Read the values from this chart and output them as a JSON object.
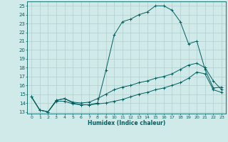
{
  "xlabel": "Humidex (Indice chaleur)",
  "xlim": [
    -0.5,
    23.5
  ],
  "ylim": [
    12.8,
    25.5
  ],
  "xticks": [
    0,
    1,
    2,
    3,
    4,
    5,
    6,
    7,
    8,
    9,
    10,
    11,
    12,
    13,
    14,
    15,
    16,
    17,
    18,
    19,
    20,
    21,
    22,
    23
  ],
  "yticks": [
    13,
    14,
    15,
    16,
    17,
    18,
    19,
    20,
    21,
    22,
    23,
    24,
    25
  ],
  "bg_color": "#d0eaea",
  "grid_color": "#b0cccc",
  "line_color": "#005f5f",
  "line1_y": [
    14.7,
    13.2,
    13.0,
    14.3,
    14.5,
    14.0,
    13.8,
    13.8,
    14.0,
    17.7,
    21.7,
    23.2,
    23.5,
    24.0,
    24.3,
    25.0,
    25.0,
    24.5,
    23.2,
    20.7,
    21.0,
    17.8,
    15.7,
    15.8
  ],
  "line2_y": [
    14.7,
    13.2,
    13.0,
    14.3,
    14.5,
    14.1,
    14.0,
    14.1,
    14.5,
    15.0,
    15.5,
    15.8,
    16.0,
    16.3,
    16.5,
    16.8,
    17.0,
    17.3,
    17.8,
    18.3,
    18.5,
    18.0,
    16.5,
    15.5
  ],
  "line3_y": [
    14.7,
    13.2,
    13.0,
    14.2,
    14.2,
    13.9,
    13.8,
    13.8,
    13.9,
    14.0,
    14.2,
    14.4,
    14.7,
    15.0,
    15.2,
    15.5,
    15.7,
    16.0,
    16.3,
    16.8,
    17.5,
    17.3,
    15.5,
    15.2
  ]
}
